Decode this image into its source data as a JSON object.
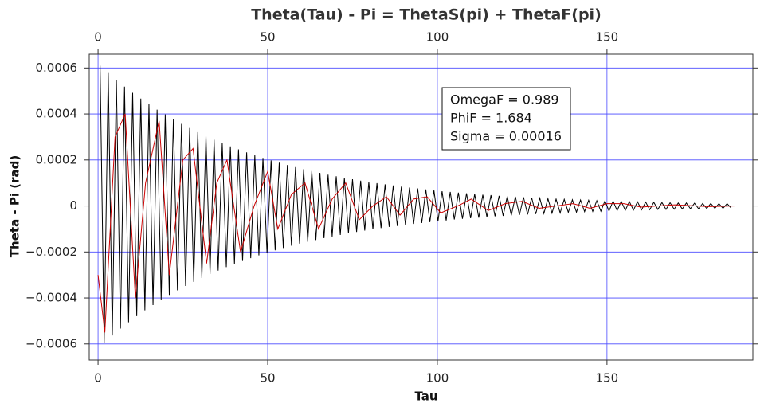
{
  "chart_data": {
    "type": "line",
    "title": "Theta(Tau) - Pi = ThetaS(pi) + ThetaF(pi)",
    "xlabel": "Tau",
    "ylabel": "Theta - Pi (rad)",
    "annotations": [
      "OmegaF = 0.989",
      "PhiF = 1.684",
      "Sigma = 0.00016"
    ],
    "xlim": [
      -2.6,
      193
    ],
    "ylim": [
      -0.00067,
      0.00066
    ],
    "xticks": [
      0,
      50,
      100,
      150
    ],
    "yticks": [
      0.0006,
      0.0004,
      0.0002,
      0,
      {
        "value": -0.0002,
        "label": "−0.0002"
      },
      {
        "value": -0.0004,
        "label": "−0.0004"
      },
      {
        "value": -0.0006,
        "label": "−0.0006"
      }
    ],
    "grid": true,
    "grid_color": "#4a4aff",
    "series": [
      {
        "color": "#000000",
        "x": [
          0.6,
          1.8,
          3,
          4.2,
          5.4,
          6.6,
          7.8,
          9,
          10.2,
          11.4,
          12.6,
          13.8,
          15,
          16.2,
          17.4,
          18.6,
          19.8,
          21,
          22.2,
          23.4,
          24.6,
          25.8,
          27,
          28.2,
          29.4,
          30.6,
          31.8,
          33,
          34.2,
          35.4,
          36.6,
          37.8,
          39,
          40.2,
          41.4,
          42.6,
          43.8,
          45,
          46.2,
          47.4,
          48.6,
          49.8,
          51,
          52.2,
          53.4,
          54.6,
          55.8,
          57,
          58.2,
          59.4,
          60.6,
          61.8,
          63,
          64.2,
          65.4,
          66.6,
          67.8,
          69,
          70.2,
          71.4,
          72.6,
          73.8,
          75,
          76.2,
          77.4,
          78.6,
          79.8,
          81,
          82.2,
          83.4,
          84.6,
          85.8,
          87,
          88.2,
          89.4,
          90.6,
          91.8,
          93,
          94.2,
          95.4,
          96.6,
          97.8,
          99,
          100.2,
          101.4,
          102.6,
          103.8,
          105,
          106.2,
          107.4,
          108.6,
          109.8,
          111,
          112.2,
          113.4,
          114.6,
          115.8,
          117,
          118.2,
          119.4,
          120.6,
          121.8,
          123,
          124.2,
          125.4,
          126.6,
          127.8,
          129,
          130.2,
          131.4,
          132.6,
          133.8,
          135,
          136.2,
          137.4,
          138.6,
          139.8,
          141,
          142.2,
          143.4,
          144.6,
          145.8,
          147,
          148.2,
          149.4,
          150.6,
          151.8,
          153,
          154.2,
          155.4,
          156.6,
          157.8,
          159,
          160.2,
          161.4,
          162.6,
          163.8,
          165,
          166.2,
          167.4,
          168.6,
          169.8,
          171,
          172.2,
          173.4,
          174.6,
          175.8,
          177,
          178.2,
          179.4,
          180.6,
          181.8,
          183,
          184.2,
          185.4,
          186.6
        ],
        "values": [
          0.00061,
          -0.000594,
          0.000578,
          -0.000563,
          0.000548,
          -0.000533,
          0.000519,
          -0.000506,
          0.000492,
          -0.000479,
          0.000467,
          -0.000454,
          0.000442,
          -0.000431,
          0.000419,
          -0.000408,
          0.000398,
          -0.000387,
          0.000377,
          -0.000367,
          0.000357,
          -0.000348,
          0.000339,
          -0.00033,
          0.000321,
          -0.000313,
          0.000304,
          -0.000296,
          0.000288,
          -0.000281,
          0.000273,
          -0.000266,
          0.000259,
          -0.000252,
          0.000246,
          -0.000239,
          0.000233,
          -0.000227,
          0.000221,
          -0.000215,
          0.000209,
          -0.000204,
          0.000198,
          -0.000193,
          0.000188,
          -0.000183,
          0.000178,
          -0.000173,
          0.000169,
          -0.000164,
          0.00016,
          -0.000156,
          0.000152,
          -0.000148,
          0.000144,
          -0.00014,
          0.000136,
          -0.000133,
          0.000129,
          -0.000126,
          0.000122,
          -0.000119,
          0.000116,
          -0.000113,
          0.00011,
          -0.000107,
          0.000104,
          -0.000102,
          9.9e-05,
          -9.6e-05,
          9.4e-05,
          -9.1e-05,
          8.9e-05,
          -8.7e-05,
          8.4e-05,
          -8.2e-05,
          8e-05,
          -7.8e-05,
          7.6e-05,
          -7.4e-05,
          7.2e-05,
          -7e-05,
          6.8e-05,
          -6.6e-05,
          6.4e-05,
          -6.3e-05,
          6.1e-05,
          -5.9e-05,
          5.8e-05,
          -5.6e-05,
          5.5e-05,
          -5.3e-05,
          5.2e-05,
          -5.1e-05,
          4.9e-05,
          -4.8e-05,
          4.7e-05,
          -4.5e-05,
          4.4e-05,
          -4.3e-05,
          4.2e-05,
          -4.1e-05,
          4e-05,
          -3.9e-05,
          3.8e-05,
          -3.7e-05,
          3.6e-05,
          -3.5e-05,
          3.4e-05,
          -3.3e-05,
          3.2e-05,
          -3.1e-05,
          3e-05,
          -3e-05,
          2.9e-05,
          -2.8e-05,
          2.7e-05,
          -2.7e-05,
          2.6e-05,
          -2.5e-05,
          2.5e-05,
          -2.4e-05,
          2.3e-05,
          -2.3e-05,
          2.2e-05,
          -2.2e-05,
          2.1e-05,
          -2e-05,
          2e-05,
          -1.9e-05,
          1.9e-05,
          -1.8e-05,
          1.8e-05,
          -1.7e-05,
          1.7e-05,
          -1.6e-05,
          1.6e-05,
          -1.5e-05,
          1.5e-05,
          -1.5e-05,
          1.4e-05,
          -1.4e-05,
          1.3e-05,
          -1.3e-05,
          1.3e-05,
          -1.2e-05,
          1.2e-05,
          -1.2e-05,
          1.1e-05,
          -1.1e-05,
          1.1e-05,
          -1e-05,
          1e-05,
          -1e-05,
          1e-05,
          -9e-06
        ]
      },
      {
        "color": "#cc0000",
        "x": [
          0,
          2,
          5,
          8,
          11,
          14,
          18,
          21,
          25,
          28,
          32,
          35,
          38,
          42,
          46,
          50,
          53,
          57,
          61,
          65,
          69,
          73,
          77,
          81,
          85,
          89,
          93,
          97,
          101,
          106,
          110,
          115,
          120,
          125,
          130,
          135,
          140,
          145,
          150,
          155,
          160,
          170,
          180,
          188
        ],
        "values": [
          -0.0003,
          -0.00055,
          0.0003,
          0.0004,
          -0.0004,
          0.0001,
          0.00037,
          -0.0003,
          0.0002,
          0.00025,
          -0.00025,
          0.0001,
          0.0002,
          -0.0002,
          0,
          0.00015,
          -0.0001,
          5e-05,
          0.0001,
          -0.0001,
          3e-05,
          0.0001,
          -6e-05,
          0,
          4e-05,
          -4e-05,
          3e-05,
          4e-05,
          -3e-05,
          0,
          3e-05,
          -2e-05,
          1e-05,
          2e-05,
          -1e-05,
          0,
          1e-05,
          -1e-05,
          1e-05,
          1e-05,
          -5e-06,
          5e-06,
          -3e-06,
          0
        ]
      }
    ]
  }
}
